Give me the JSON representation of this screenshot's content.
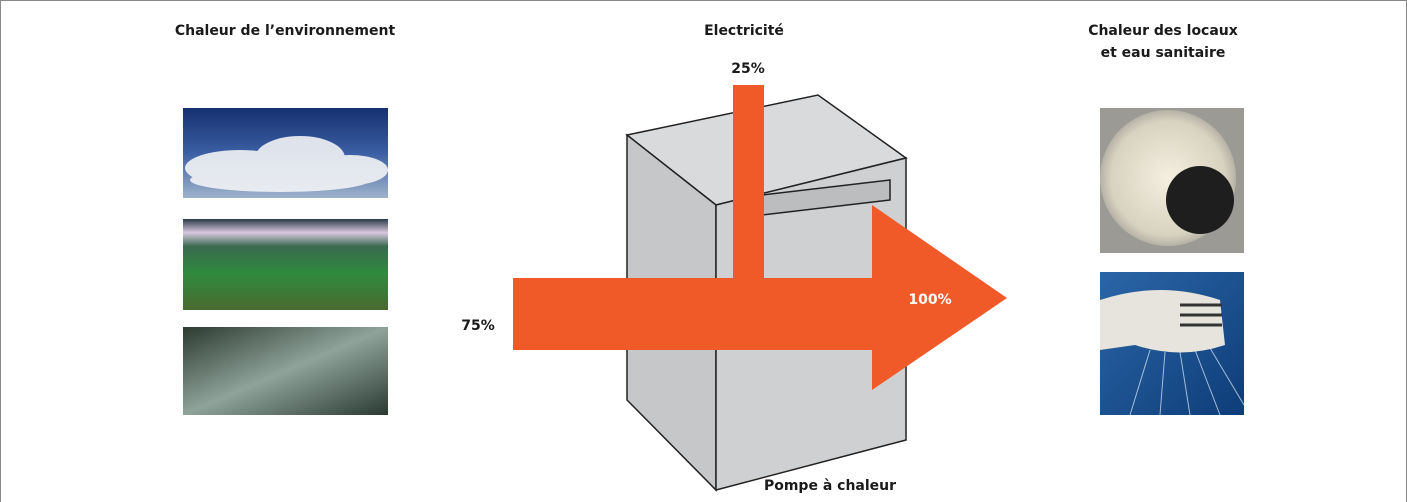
{
  "headings": {
    "environment": "Chaleur de l’environnement",
    "electricity": "Electricité",
    "output_line1": "Chaleur des locaux",
    "output_line2": "et eau sanitaire"
  },
  "percentages": {
    "electricity": "25%",
    "environment": "75%",
    "total": "100%"
  },
  "device_label": "Pompe à chaleur"
}
